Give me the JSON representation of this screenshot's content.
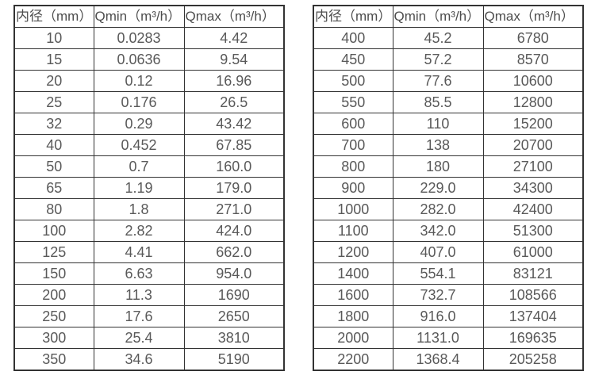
{
  "page": {
    "background": "#ffffff",
    "border_color": "#333333",
    "text_color": "#595959"
  },
  "tables": [
    {
      "name": "flow-table-small-diameters",
      "headers": [
        "内径（mm）",
        "Qmin（m³/h）",
        "Qmax（m³/h）"
      ],
      "header_keys": [
        "diameter",
        "qmin",
        "qmax"
      ],
      "rows": [
        [
          "10",
          "0.0283",
          "4.42"
        ],
        [
          "15",
          "0.0636",
          "9.54"
        ],
        [
          "20",
          "0.12",
          "16.96"
        ],
        [
          "25",
          "0.176",
          "26.5"
        ],
        [
          "32",
          "0.29",
          "43.42"
        ],
        [
          "40",
          "0.452",
          "67.85"
        ],
        [
          "50",
          "0.7",
          "160.0"
        ],
        [
          "65",
          "1.19",
          "179.0"
        ],
        [
          "80",
          "1.8",
          "271.0"
        ],
        [
          "100",
          "2.82",
          "424.0"
        ],
        [
          "125",
          "4.41",
          "662.0"
        ],
        [
          "150",
          "6.63",
          "954.0"
        ],
        [
          "200",
          "11.3",
          "1690"
        ],
        [
          "250",
          "17.6",
          "2650"
        ],
        [
          "300",
          "25.4",
          "3810"
        ],
        [
          "350",
          "34.6",
          "5190"
        ]
      ]
    },
    {
      "name": "flow-table-large-diameters",
      "headers": [
        "内径（mm）",
        "Qmin（m³/h）",
        "Qmax（m³/h）"
      ],
      "header_keys": [
        "diameter",
        "qmin",
        "qmax"
      ],
      "rows": [
        [
          "400",
          "45.2",
          "6780"
        ],
        [
          "450",
          "57.2",
          "8570"
        ],
        [
          "500",
          "77.6",
          "10600"
        ],
        [
          "550",
          "85.5",
          "12800"
        ],
        [
          "600",
          "110",
          "15200"
        ],
        [
          "700",
          "138",
          "20700"
        ],
        [
          "800",
          "180",
          "27100"
        ],
        [
          "900",
          "229.0",
          "34300"
        ],
        [
          "1000",
          "282.0",
          "42400"
        ],
        [
          "1100",
          "342.0",
          "51300"
        ],
        [
          "1200",
          "407.0",
          "61000"
        ],
        [
          "1400",
          "554.1",
          "83121"
        ],
        [
          "1600",
          "732.7",
          "108566"
        ],
        [
          "1800",
          "916.0",
          "137404"
        ],
        [
          "2000",
          "1131.0",
          "169635"
        ],
        [
          "2200",
          "1368.4",
          "205258"
        ]
      ]
    }
  ]
}
